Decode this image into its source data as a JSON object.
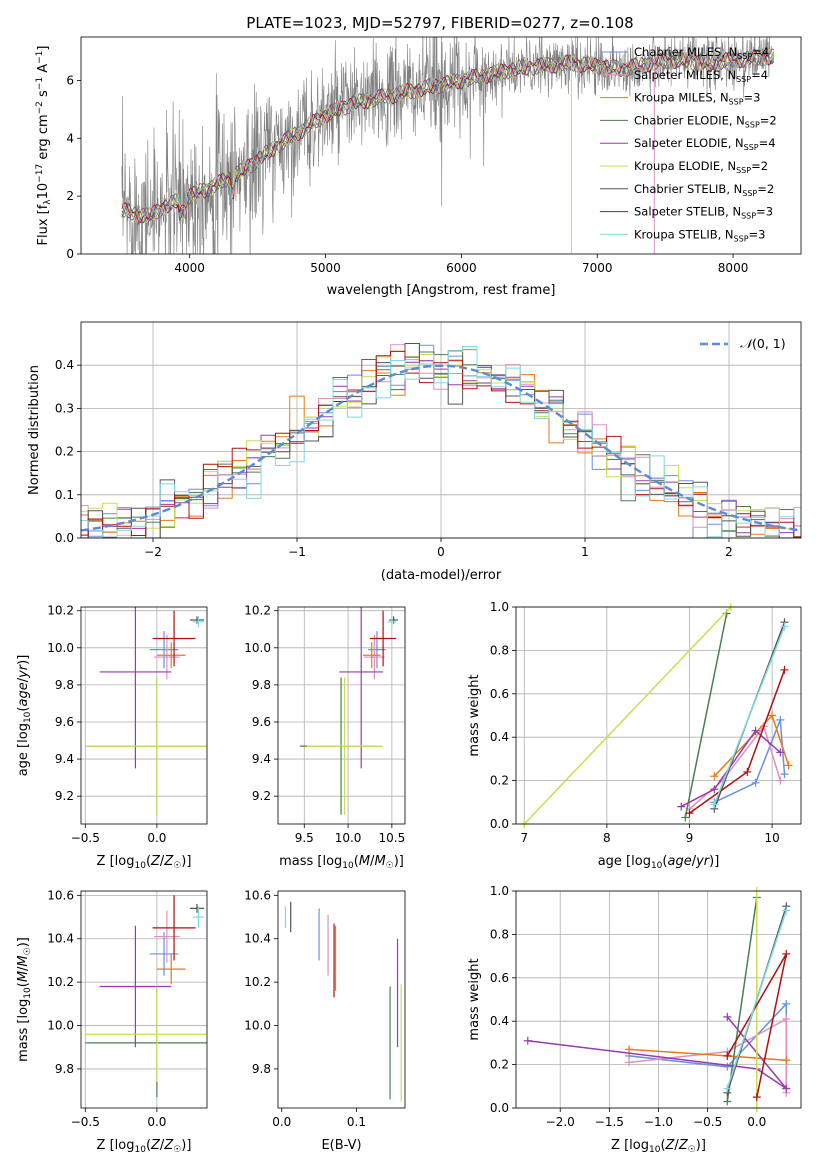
{
  "figure": {
    "title": "PLATE=1023, MJD=52797, FIBERID=0277, z=0.108"
  },
  "colors": {
    "Chabrier MILES": "#6b8fe0",
    "Salpeter MILES": "#e090c0",
    "Kroupa MILES": "#e87a1a",
    "Chabrier ELODIE": "#4a8050",
    "Salpeter ELODIE": "#9a3ab0",
    "Kroupa ELODIE": "#c8e050",
    "Chabrier STELIB": "#555555",
    "Salpeter STELIB": "#b01010",
    "Kroupa STELIB": "#80d8e0",
    "data": "#808080",
    "gaussian": "#5b8bd8"
  },
  "chart_data": [
    {
      "id": "spectrum",
      "type": "line",
      "title": "PLATE=1023, MJD=52797, FIBERID=0277, z=0.108",
      "xlabel": "wavelength [Angstrom, rest frame]",
      "ylabel": "Flux [f_λ 10^-17 erg cm^-2 s^-1 A^-1]",
      "xlim": [
        3200,
        8500
      ],
      "ylim": [
        0,
        7.5
      ],
      "xticks": [
        "4000",
        "5000",
        "6000",
        "7000",
        "8000"
      ],
      "yticks": [
        "0",
        "2",
        "4",
        "6"
      ],
      "legend_placement": "upper right",
      "continuum": {
        "x": [
          3500,
          3600,
          3700,
          3800,
          3900,
          4000,
          4200,
          4400,
          4600,
          4800,
          5000,
          5200,
          5400,
          5600,
          5800,
          6000,
          6200,
          6400,
          6600,
          6800,
          7000,
          7200,
          7400,
          7600,
          7800,
          8000,
          8200,
          8300
        ],
        "y": [
          1.5,
          1.4,
          1.3,
          1.6,
          1.8,
          2.0,
          2.4,
          2.9,
          3.6,
          4.2,
          4.8,
          5.2,
          5.4,
          5.6,
          5.8,
          6.0,
          6.2,
          6.4,
          6.5,
          6.6,
          6.5,
          6.4,
          6.6,
          6.7,
          6.6,
          6.7,
          6.8,
          6.8
        ]
      },
      "series": [
        {
          "name": "Chabrier MILES",
          "label": "N_SSP=4"
        },
        {
          "name": "Salpeter MILES",
          "label": "N_SSP=4"
        },
        {
          "name": "Kroupa MILES",
          "label": "N_SSP=3"
        },
        {
          "name": "Chabrier ELODIE",
          "label": "N_SSP=2"
        },
        {
          "name": "Salpeter ELODIE",
          "label": "N_SSP=4"
        },
        {
          "name": "Kroupa ELODIE",
          "label": "N_SSP=2"
        },
        {
          "name": "Chabrier STELIB",
          "label": "N_SSP=2"
        },
        {
          "name": "Salpeter STELIB",
          "label": "N_SSP=3"
        },
        {
          "name": "Kroupa STELIB",
          "label": "N_SSP=3"
        }
      ]
    },
    {
      "id": "residuals",
      "type": "line",
      "xlabel": "(data-model)/error",
      "ylabel": "Normed distribution",
      "xlim": [
        -2.5,
        2.5
      ],
      "ylim": [
        0,
        0.5
      ],
      "xticks": [
        "-2",
        "-1",
        "0",
        "1",
        "2"
      ],
      "yticks": [
        "0.0",
        "0.1",
        "0.2",
        "0.3",
        "0.4"
      ],
      "grid": true,
      "legend": "N(0,1)",
      "legend_placement": "upper right",
      "bin_width": 0.1
    },
    {
      "id": "age_vs_Z",
      "type": "scatter",
      "xlabel": "Z [log10(Z/Z☉)]",
      "ylabel": "age [log10(age/yr)]",
      "xlim": [
        -0.53,
        0.35
      ],
      "ylim": [
        9.05,
        10.22
      ],
      "xticks": [
        "-0.5",
        "0.0"
      ],
      "yticks": [
        "9.2",
        "9.4",
        "9.6",
        "9.8",
        "10.0",
        "10.2"
      ],
      "grid": true,
      "points": [
        {
          "series": "Chabrier MILES",
          "x": 0.05,
          "xerr": 0.1,
          "y": 9.99,
          "yerr": 0.1
        },
        {
          "series": "Salpeter MILES",
          "x": 0.07,
          "xerr": 0.09,
          "y": 9.95,
          "yerr": 0.12
        },
        {
          "series": "Kroupa MILES",
          "x": 0.1,
          "xerr": 0.1,
          "y": 9.96,
          "yerr": 0.07
        },
        {
          "series": "Chabrier ELODIE",
          "x": 0.0,
          "xerr": 0.5,
          "y": 9.47,
          "yerr": 0.37
        },
        {
          "series": "Salpeter ELODIE",
          "x": -0.15,
          "xerr": 0.25,
          "y": 9.87,
          "yerr": 0.52
        },
        {
          "series": "Kroupa ELODIE",
          "x": 0.0,
          "xerr": 0.5,
          "y": 9.47,
          "yerr": 0.37
        },
        {
          "series": "Chabrier STELIB",
          "x": 0.28,
          "xerr": 0.05,
          "y": 10.15,
          "yerr": 0.02
        },
        {
          "series": "Salpeter STELIB",
          "x": 0.12,
          "xerr": 0.15,
          "y": 10.05,
          "yerr": 0.15
        },
        {
          "series": "Kroupa STELIB",
          "x": 0.29,
          "xerr": 0.04,
          "y": 10.14,
          "yerr": 0.03
        }
      ]
    },
    {
      "id": "age_vs_mass",
      "type": "scatter",
      "xlabel": "mass [log10(M/M☉)]",
      "ylabel": "",
      "xlim": [
        9.2,
        10.65
      ],
      "ylim": [
        9.05,
        10.22
      ],
      "xticks": [
        "9.5",
        "10.0",
        "10.5"
      ],
      "yticks": [
        "9.2",
        "9.4",
        "9.6",
        "9.8",
        "10.0",
        "10.2"
      ],
      "grid": true,
      "points": [
        {
          "series": "Chabrier MILES",
          "x": 10.33,
          "xerr": 0.1,
          "y": 9.99,
          "yerr": 0.1
        },
        {
          "series": "Salpeter MILES",
          "x": 10.3,
          "xerr": 0.12,
          "y": 9.95,
          "yerr": 0.12
        },
        {
          "series": "Kroupa MILES",
          "x": 10.27,
          "xerr": 0.1,
          "y": 9.96,
          "yerr": 0.07
        },
        {
          "series": "Chabrier ELODIE",
          "x": 9.92,
          "xerr": 0.47,
          "y": 9.47,
          "yerr": 0.37
        },
        {
          "series": "Salpeter ELODIE",
          "x": 10.15,
          "xerr": 0.25,
          "y": 9.87,
          "yerr": 0.52
        },
        {
          "series": "Kroupa ELODIE",
          "x": 9.96,
          "xerr": 0.43,
          "y": 9.47,
          "yerr": 0.37
        },
        {
          "series": "Chabrier STELIB",
          "x": 10.52,
          "xerr": 0.05,
          "y": 10.15,
          "yerr": 0.02
        },
        {
          "series": "Salpeter STELIB",
          "x": 10.4,
          "xerr": 0.15,
          "y": 10.05,
          "yerr": 0.15
        },
        {
          "series": "Kroupa STELIB",
          "x": 10.5,
          "xerr": 0.05,
          "y": 10.14,
          "yerr": 0.03
        }
      ]
    },
    {
      "id": "weight_vs_age",
      "type": "line",
      "xlabel": "age [log10(age/yr)]",
      "ylabel": "mass weight",
      "xlim": [
        6.9,
        10.35
      ],
      "ylim": [
        0,
        1.0
      ],
      "xticks": [
        "7",
        "8",
        "9",
        "10"
      ],
      "yticks": [
        "0.0",
        "0.2",
        "0.4",
        "0.6",
        "0.8",
        "1.0"
      ],
      "grid": true,
      "series": [
        {
          "name": "Chabrier MILES",
          "x": [
            9.3,
            9.8,
            10.1,
            10.15
          ],
          "y": [
            0.1,
            0.19,
            0.48,
            0.23
          ]
        },
        {
          "name": "Salpeter MILES",
          "x": [
            9.0,
            9.4,
            9.9,
            10.1
          ],
          "y": [
            0.07,
            0.2,
            0.45,
            0.2
          ]
        },
        {
          "name": "Kroupa MILES",
          "x": [
            9.3,
            10.0,
            10.2
          ],
          "y": [
            0.22,
            0.5,
            0.27
          ]
        },
        {
          "name": "Chabrier ELODIE",
          "x": [
            8.95,
            9.45
          ],
          "y": [
            0.03,
            0.97
          ]
        },
        {
          "name": "Salpeter ELODIE",
          "x": [
            8.9,
            9.3,
            9.8,
            10.1
          ],
          "y": [
            0.08,
            0.16,
            0.43,
            0.33
          ]
        },
        {
          "name": "Kroupa ELODIE",
          "x": [
            7.0,
            9.5
          ],
          "y": [
            0.0,
            1.0
          ]
        },
        {
          "name": "Chabrier STELIB",
          "x": [
            9.3,
            10.15
          ],
          "y": [
            0.07,
            0.93
          ]
        },
        {
          "name": "Salpeter STELIB",
          "x": [
            9.0,
            9.7,
            10.15
          ],
          "y": [
            0.05,
            0.24,
            0.71
          ]
        },
        {
          "name": "Kroupa STELIB",
          "x": [
            9.3,
            10.15
          ],
          "y": [
            0.09,
            0.91
          ]
        }
      ]
    },
    {
      "id": "mass_vs_Z",
      "type": "scatter",
      "xlabel": "Z [log10(Z/Z☉)]",
      "ylabel": "mass [log10(M/M☉)]",
      "xlim": [
        -0.53,
        0.35
      ],
      "ylim": [
        9.62,
        10.62
      ],
      "xticks": [
        "-0.5",
        "0.0"
      ],
      "yticks": [
        "9.8",
        "10.0",
        "10.2",
        "10.4",
        "10.6"
      ],
      "grid": true,
      "points": [
        {
          "series": "Chabrier MILES",
          "x": 0.05,
          "xerr": 0.1,
          "y": 10.33,
          "yerr": 0.1
        },
        {
          "series": "Salpeter MILES",
          "x": 0.07,
          "xerr": 0.09,
          "y": 10.41,
          "yerr": 0.12
        },
        {
          "series": "Kroupa MILES",
          "x": 0.1,
          "xerr": 0.1,
          "y": 10.26,
          "yerr": 0.07
        },
        {
          "series": "Chabrier ELODIE",
          "x": 0.0,
          "xerr": 0.5,
          "y": 9.92,
          "yerr": 0.25
        },
        {
          "series": "Salpeter ELODIE",
          "x": -0.15,
          "xerr": 0.25,
          "y": 10.18,
          "yerr": 0.28
        },
        {
          "series": "Kroupa ELODIE",
          "x": 0.0,
          "xerr": 0.5,
          "y": 9.96,
          "yerr": 0.22
        },
        {
          "series": "Chabrier STELIB",
          "x": 0.28,
          "xerr": 0.05,
          "y": 10.54,
          "yerr": 0.02
        },
        {
          "series": "Salpeter STELIB",
          "x": 0.12,
          "xerr": 0.15,
          "y": 10.45,
          "yerr": 0.15
        },
        {
          "series": "Kroupa STELIB",
          "x": 0.29,
          "xerr": 0.04,
          "y": 10.5,
          "yerr": 0.05
        }
      ]
    },
    {
      "id": "mass_vs_ebv",
      "type": "scatter",
      "xlabel": "E(B-V)",
      "ylabel": "",
      "xlim": [
        -0.005,
        0.165
      ],
      "ylim": [
        9.62,
        10.62
      ],
      "xticks": [
        "0.0",
        "0.1"
      ],
      "yticks": [
        "9.8",
        "10.0",
        "10.2",
        "10.4",
        "10.6"
      ],
      "grid": false,
      "points": [
        {
          "series": "Chabrier MILES",
          "x": 0.05,
          "y": 10.42,
          "yerr": 0.12
        },
        {
          "series": "Salpeter MILES",
          "x": 0.062,
          "y": 10.37,
          "yerr": 0.14
        },
        {
          "series": "Kroupa MILES",
          "x": 0.072,
          "y": 10.31,
          "yerr": 0.15
        },
        {
          "series": "Chabrier ELODIE",
          "x": 0.145,
          "y": 9.92,
          "yerr": 0.26
        },
        {
          "series": "Salpeter ELODIE",
          "x": 0.155,
          "y": 10.15,
          "yerr": 0.25
        },
        {
          "series": "Kroupa ELODIE",
          "x": 0.16,
          "y": 9.92,
          "yerr": 0.27
        },
        {
          "series": "Chabrier STELIB",
          "x": 0.012,
          "y": 10.5,
          "yerr": 0.07
        },
        {
          "series": "Salpeter STELIB",
          "x": 0.07,
          "y": 10.3,
          "yerr": 0.17
        },
        {
          "series": "Kroupa STELIB",
          "x": 0.005,
          "y": 10.5,
          "yerr": 0.05
        }
      ]
    },
    {
      "id": "weight_vs_Z",
      "type": "line",
      "xlabel": "Z [log10(Z/Z☉)]",
      "ylabel": "mass weight",
      "xlim": [
        -2.45,
        0.45
      ],
      "ylim": [
        0,
        1.0
      ],
      "xticks": [
        "-2.0",
        "-1.5",
        "-1.0",
        "-0.5",
        "0.0"
      ],
      "yticks": [
        "0.0",
        "0.2",
        "0.4",
        "0.6",
        "0.8",
        "1.0"
      ],
      "grid": true,
      "series": [
        {
          "name": "Chabrier MILES",
          "x": [
            -1.3,
            -0.3,
            0.3,
            0.3
          ],
          "y": [
            0.24,
            0.19,
            0.48,
            0.09
          ]
        },
        {
          "name": "Salpeter MILES",
          "x": [
            -1.3,
            -0.3,
            0.3,
            0.3
          ],
          "y": [
            0.21,
            0.26,
            0.41,
            0.07
          ]
        },
        {
          "name": "Kroupa MILES",
          "x": [
            -1.3,
            -0.3,
            0.3
          ],
          "y": [
            0.27,
            0.24,
            0.22
          ]
        },
        {
          "name": "Chabrier ELODIE",
          "x": [
            -0.3,
            0.0
          ],
          "y": [
            0.03,
            0.97
          ]
        },
        {
          "name": "Salpeter ELODIE",
          "x": [
            -2.33,
            0.0,
            0.3,
            -0.3
          ],
          "y": [
            0.31,
            0.18,
            0.09,
            0.42
          ]
        },
        {
          "name": "Kroupa ELODIE",
          "x": [
            0.0,
            0.0
          ],
          "y": [
            0.0,
            1.0
          ]
        },
        {
          "name": "Chabrier STELIB",
          "x": [
            -0.3,
            0.3
          ],
          "y": [
            0.07,
            0.93
          ]
        },
        {
          "name": "Salpeter STELIB",
          "x": [
            0.0,
            0.3,
            -0.3
          ],
          "y": [
            0.05,
            0.71,
            0.24
          ]
        },
        {
          "name": "Kroupa STELIB",
          "x": [
            -0.3,
            0.3
          ],
          "y": [
            0.09,
            0.91
          ]
        }
      ]
    }
  ]
}
